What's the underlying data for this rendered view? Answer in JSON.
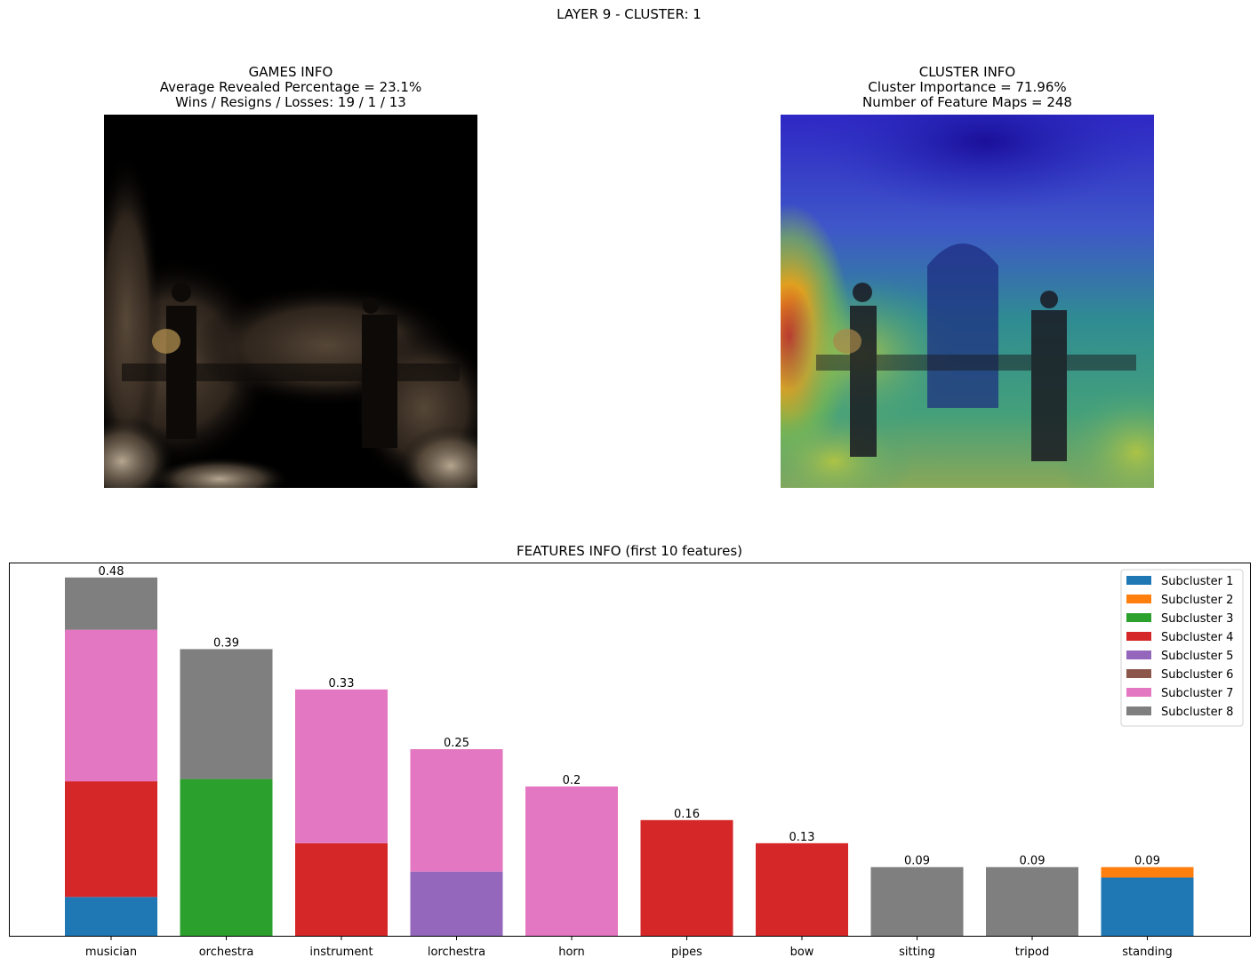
{
  "suptitle": "LAYER 9 - CLUSTER: 1",
  "games_info": {
    "title": "GAMES INFO",
    "line1": "Average Revealed Percentage = 23.1%",
    "line2": "Wins / Resigns / Losses: 19 / 1 / 13"
  },
  "cluster_info": {
    "title": "CLUSTER INFO",
    "line1": "Cluster Importance = 71.96%",
    "line2": "Number of Feature Maps = 248"
  },
  "chart_data": {
    "type": "bar",
    "stacked": true,
    "title": "FEATURES INFO (first 10 features)",
    "xlabel": "",
    "ylabel": "",
    "ylim": [
      0,
      0.5
    ],
    "categories": [
      "musician",
      "orchestra",
      "instrument",
      "lorchestra",
      "horn",
      "pipes",
      "bow",
      "sitting",
      "tripod",
      "standing"
    ],
    "totals_labels": [
      "0.48",
      "0.39",
      "0.33",
      "0.25",
      "0.2",
      "0.16",
      "0.13",
      "0.09",
      "0.09",
      "0.09"
    ],
    "series": [
      {
        "name": "Subcluster 1",
        "color": "#1f77b4",
        "values": [
          0.052,
          0,
          0,
          0,
          0,
          0,
          0,
          0,
          0,
          0.078
        ]
      },
      {
        "name": "Subcluster 2",
        "color": "#ff7f0e",
        "values": [
          0,
          0,
          0,
          0,
          0,
          0,
          0,
          0,
          0,
          0.014
        ]
      },
      {
        "name": "Subcluster 3",
        "color": "#2ca02c",
        "values": [
          0,
          0.21,
          0,
          0,
          0,
          0,
          0,
          0,
          0,
          0
        ]
      },
      {
        "name": "Subcluster 4",
        "color": "#d62728",
        "values": [
          0.155,
          0,
          0.124,
          0,
          0,
          0.155,
          0.124,
          0,
          0,
          0
        ]
      },
      {
        "name": "Subcluster 5",
        "color": "#9467bd",
        "values": [
          0,
          0,
          0,
          0.086,
          0,
          0,
          0,
          0,
          0,
          0
        ]
      },
      {
        "name": "Subcluster 6",
        "color": "#8c564b",
        "values": [
          0,
          0,
          0,
          0,
          0,
          0,
          0,
          0,
          0,
          0
        ]
      },
      {
        "name": "Subcluster 7",
        "color": "#e377c2",
        "values": [
          0.203,
          0,
          0.206,
          0.164,
          0.2,
          0,
          0,
          0,
          0,
          0
        ]
      },
      {
        "name": "Subcluster 8",
        "color": "#7f7f7f",
        "values": [
          0.07,
          0.174,
          0,
          0,
          0,
          0,
          0,
          0.092,
          0.092,
          0
        ]
      }
    ],
    "legend": "top-right",
    "grid": false
  }
}
